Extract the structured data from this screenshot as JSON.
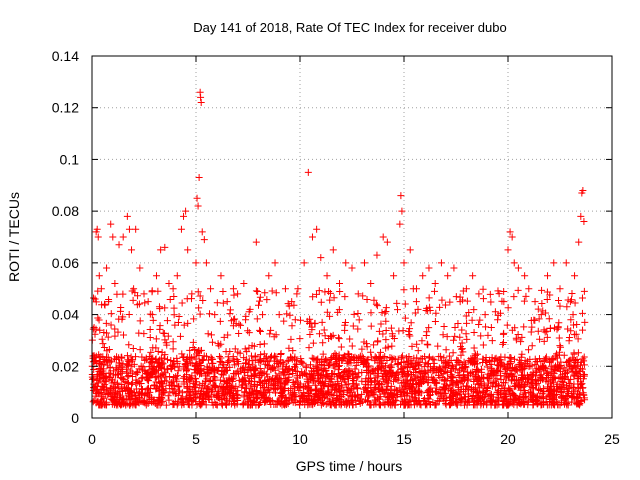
{
  "chart_data": {
    "type": "scatter",
    "title": "Day 141 of 2018, Rate Of TEC Index for receiver dubo",
    "xlabel": "GPS time / hours",
    "ylabel": "ROTI / TECUs",
    "xlim": [
      0,
      25
    ],
    "ylim": [
      0,
      0.14
    ],
    "xticks": [
      0,
      5,
      10,
      15,
      20,
      25
    ],
    "yticks": [
      0,
      0.02,
      0.04,
      0.06,
      0.08,
      0.1,
      0.12,
      0.14
    ],
    "xtick_labels": [
      "0",
      "5",
      "10",
      "15",
      "20",
      "25"
    ],
    "ytick_labels": [
      "0",
      "0.02",
      "0.04",
      "0.06",
      "0.08",
      "0.1",
      "0.12",
      "0.14"
    ],
    "grid": true,
    "marker": "plus",
    "color": "#ff0000",
    "series": [
      {
        "points": [
          [
            0.05,
            0.024
          ],
          [
            0.1,
            0.035
          ],
          [
            0.15,
            0.046
          ],
          [
            0.2,
            0.072
          ],
          [
            0.25,
            0.073
          ],
          [
            0.3,
            0.07
          ],
          [
            0.35,
            0.055
          ],
          [
            0.45,
            0.05
          ],
          [
            0.6,
            0.044
          ],
          [
            0.7,
            0.058
          ],
          [
            0.8,
            0.045
          ],
          [
            0.9,
            0.075
          ],
          [
            1.0,
            0.07
          ],
          [
            1.1,
            0.052
          ],
          [
            1.3,
            0.067
          ],
          [
            1.5,
            0.07
          ],
          [
            1.7,
            0.078
          ],
          [
            1.8,
            0.073
          ],
          [
            1.9,
            0.065
          ],
          [
            2.0,
            0.05
          ],
          [
            2.1,
            0.073
          ],
          [
            2.3,
            0.058
          ],
          [
            2.5,
            0.048
          ],
          [
            2.7,
            0.045
          ],
          [
            2.9,
            0.04
          ],
          [
            3.1,
            0.055
          ],
          [
            3.3,
            0.065
          ],
          [
            3.5,
            0.066
          ],
          [
            3.7,
            0.052
          ],
          [
            3.9,
            0.05
          ],
          [
            4.1,
            0.055
          ],
          [
            4.3,
            0.073
          ],
          [
            4.4,
            0.078
          ],
          [
            4.5,
            0.08
          ],
          [
            4.6,
            0.065
          ],
          [
            4.8,
            0.048
          ],
          [
            5.0,
            0.06
          ],
          [
            5.05,
            0.085
          ],
          [
            5.1,
            0.082
          ],
          [
            5.15,
            0.093
          ],
          [
            5.2,
            0.126
          ],
          [
            5.22,
            0.124
          ],
          [
            5.25,
            0.122
          ],
          [
            5.3,
            0.072
          ],
          [
            5.4,
            0.069
          ],
          [
            5.5,
            0.06
          ],
          [
            5.7,
            0.05
          ],
          [
            5.9,
            0.04
          ],
          [
            6.2,
            0.055
          ],
          [
            6.5,
            0.045
          ],
          [
            6.8,
            0.05
          ],
          [
            7.0,
            0.048
          ],
          [
            7.3,
            0.052
          ],
          [
            7.6,
            0.042
          ],
          [
            7.9,
            0.068
          ],
          [
            8.2,
            0.04
          ],
          [
            8.5,
            0.055
          ],
          [
            8.8,
            0.06
          ],
          [
            9.0,
            0.04
          ],
          [
            9.3,
            0.05
          ],
          [
            9.6,
            0.045
          ],
          [
            9.9,
            0.05
          ],
          [
            10.2,
            0.06
          ],
          [
            10.4,
            0.095
          ],
          [
            10.6,
            0.07
          ],
          [
            10.8,
            0.073
          ],
          [
            11.0,
            0.062
          ],
          [
            11.3,
            0.055
          ],
          [
            11.6,
            0.065
          ],
          [
            11.9,
            0.052
          ],
          [
            12.2,
            0.06
          ],
          [
            12.5,
            0.058
          ],
          [
            12.8,
            0.048
          ],
          [
            13.1,
            0.06
          ],
          [
            13.4,
            0.052
          ],
          [
            13.7,
            0.063
          ],
          [
            14.0,
            0.07
          ],
          [
            14.2,
            0.068
          ],
          [
            14.5,
            0.055
          ],
          [
            14.8,
            0.075
          ],
          [
            14.85,
            0.086
          ],
          [
            14.9,
            0.08
          ],
          [
            15.0,
            0.06
          ],
          [
            15.3,
            0.065
          ],
          [
            15.6,
            0.05
          ],
          [
            15.9,
            0.055
          ],
          [
            16.2,
            0.058
          ],
          [
            16.5,
            0.052
          ],
          [
            16.8,
            0.06
          ],
          [
            17.1,
            0.055
          ],
          [
            17.4,
            0.058
          ],
          [
            17.7,
            0.045
          ],
          [
            18.0,
            0.05
          ],
          [
            18.3,
            0.055
          ],
          [
            18.6,
            0.048
          ],
          [
            18.9,
            0.04
          ],
          [
            19.2,
            0.035
          ],
          [
            19.5,
            0.038
          ],
          [
            19.8,
            0.045
          ],
          [
            20.0,
            0.065
          ],
          [
            20.1,
            0.072
          ],
          [
            20.2,
            0.07
          ],
          [
            20.3,
            0.06
          ],
          [
            20.5,
            0.058
          ],
          [
            20.8,
            0.055
          ],
          [
            21.0,
            0.05
          ],
          [
            21.3,
            0.045
          ],
          [
            21.6,
            0.04
          ],
          [
            21.9,
            0.055
          ],
          [
            22.2,
            0.06
          ],
          [
            22.5,
            0.05
          ],
          [
            22.8,
            0.06
          ],
          [
            23.0,
            0.045
          ],
          [
            23.2,
            0.055
          ],
          [
            23.4,
            0.068
          ],
          [
            23.5,
            0.078
          ],
          [
            23.55,
            0.087
          ],
          [
            23.6,
            0.088
          ],
          [
            23.65,
            0.076
          ]
        ]
      }
    ]
  }
}
